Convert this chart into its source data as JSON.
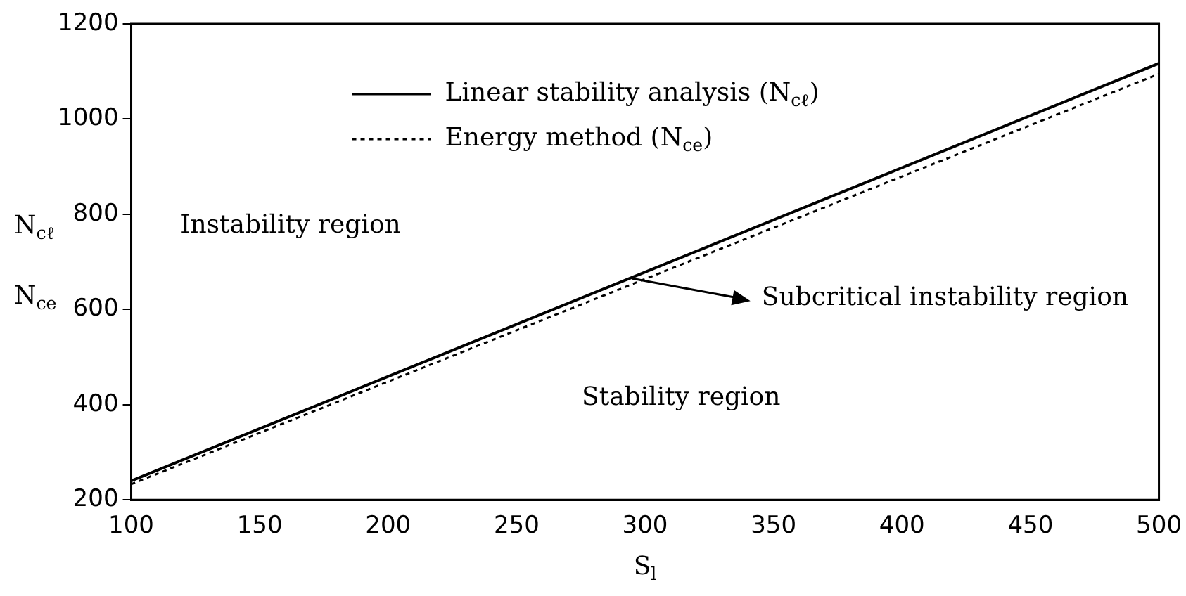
{
  "chart_data": {
    "type": "line",
    "xlabel": "S$_{l}$",
    "ylabel": "N$_{cℓ}$\nN$_{ce}$",
    "x": [
      100,
      500
    ],
    "series": [
      {
        "name": "Linear stability analysis (N$_{cℓ}$)",
        "color": "#000000",
        "line_style": "solid",
        "values": [
          240,
          1117
        ]
      },
      {
        "name": "Energy method (N$_{ce}$)",
        "color": "#000000",
        "line_style": "dotted",
        "values": [
          233,
          1095
        ]
      }
    ],
    "xlim": [
      100,
      500
    ],
    "xticks": [
      100,
      150,
      200,
      250,
      300,
      350,
      400,
      450,
      500
    ],
    "ylim": [
      200,
      1200
    ],
    "yticks": [
      200,
      400,
      600,
      800,
      1000,
      1200
    ],
    "grid": false,
    "legend": "top",
    "marker": "none",
    "annotations": [
      "Instability region",
      "Stability region",
      {
        "text": "Subcritical instability region",
        "x": 295,
        "y": 665
      }
    ]
  }
}
